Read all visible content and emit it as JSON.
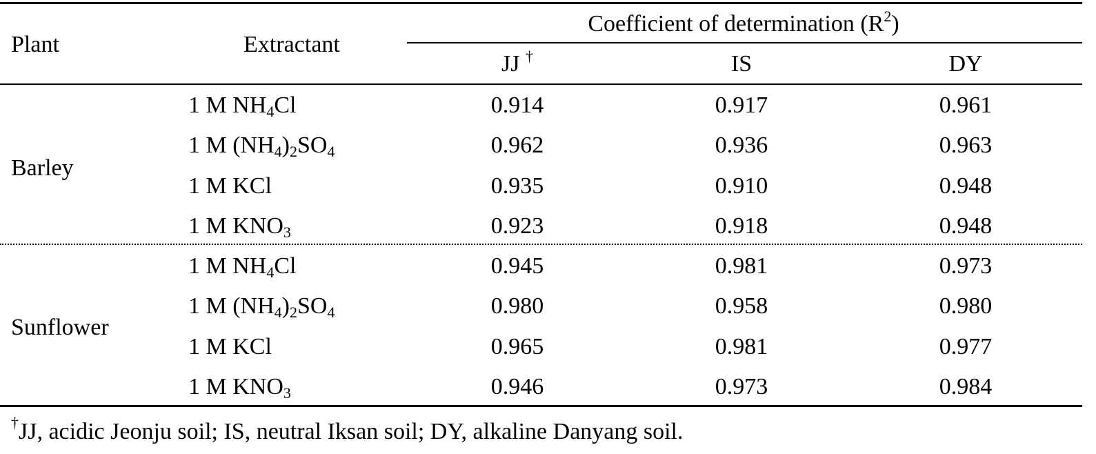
{
  "header": {
    "plant": "Plant",
    "extractant": "Extractant",
    "coef_pre": "Coefficient of determination (R",
    "coef_sup": "2",
    "coef_post": ")",
    "jj": "JJ",
    "jj_mark": "†",
    "is": "IS",
    "dy": "DY"
  },
  "extractants": [
    {
      "pre": "1 M NH",
      "sub1": "4",
      "mid": "Cl",
      "sub2": "",
      "post": ""
    },
    {
      "pre": "1 M (NH",
      "sub1": "4",
      "mid": ")",
      "sub2": "2",
      "post": "SO",
      "sub3": "4"
    },
    {
      "pre": "1 M KCl",
      "sub1": "",
      "mid": "",
      "sub2": "",
      "post": ""
    },
    {
      "pre": "1 M KNO",
      "sub1": "3",
      "mid": "",
      "sub2": "",
      "post": ""
    }
  ],
  "groups": [
    {
      "plant": "Barley",
      "rows": [
        [
          "0.914",
          "0.917",
          "0.961"
        ],
        [
          "0.962",
          "0.936",
          "0.963"
        ],
        [
          "0.935",
          "0.910",
          "0.948"
        ],
        [
          "0.923",
          "0.918",
          "0.948"
        ]
      ]
    },
    {
      "plant": "Sunflower",
      "rows": [
        [
          "0.945",
          "0.981",
          "0.973"
        ],
        [
          "0.980",
          "0.958",
          "0.980"
        ],
        [
          "0.965",
          "0.981",
          "0.977"
        ],
        [
          "0.946",
          "0.973",
          "0.984"
        ]
      ]
    }
  ],
  "footnote": {
    "mark": "†",
    "text": "JJ, acidic Jeonju soil; IS, neutral Iksan soil; DY, alkaline Danyang soil."
  }
}
